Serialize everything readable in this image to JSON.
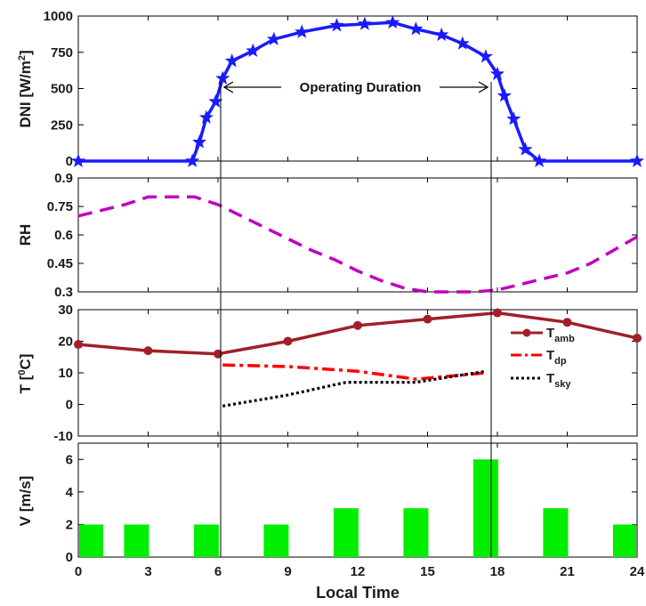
{
  "chart_data": [
    {
      "type": "line",
      "ylabel": "DNI [W/m",
      "ylabel_sup": "2",
      "ylabel_close": "]",
      "ylim": [
        0,
        1000
      ],
      "yticks": [
        0,
        250,
        500,
        750,
        1000
      ],
      "color": "#1a1aff",
      "annotation": "Operating Duration",
      "x": [
        0,
        4.9,
        5.2,
        5.5,
        5.9,
        6.2,
        6.6,
        7.5,
        8.4,
        9.6,
        11.1,
        12.3,
        13.5,
        14.5,
        15.6,
        16.5,
        17.5,
        18.0,
        18.3,
        18.7,
        19.2,
        19.8,
        24
      ],
      "y": [
        0,
        0,
        130,
        300,
        410,
        570,
        690,
        760,
        840,
        890,
        935,
        945,
        955,
        910,
        870,
        810,
        720,
        600,
        450,
        290,
        80,
        0,
        0
      ]
    },
    {
      "type": "line",
      "ylabel": "RH",
      "ylim": [
        0.3,
        0.9
      ],
      "yticks": [
        0.3,
        0.45,
        0.6,
        0.75,
        0.9
      ],
      "color": "#c000c0",
      "x": [
        0,
        1,
        2,
        3,
        4,
        5,
        6,
        7,
        8,
        9,
        10,
        11,
        12,
        13,
        14,
        15,
        16,
        17,
        18,
        19,
        20,
        21,
        22,
        23,
        24
      ],
      "y": [
        0.7,
        0.73,
        0.76,
        0.8,
        0.8,
        0.8,
        0.76,
        0.7,
        0.64,
        0.58,
        0.52,
        0.47,
        0.41,
        0.36,
        0.32,
        0.3,
        0.3,
        0.3,
        0.31,
        0.34,
        0.37,
        0.4,
        0.45,
        0.52,
        0.59
      ]
    },
    {
      "type": "line",
      "ylabel": "T [",
      "ylabel_sup": "0",
      "ylabel_close": "C]",
      "ylim": [
        -10,
        30
      ],
      "yticks": [
        -10,
        0,
        10,
        20,
        30
      ],
      "series": [
        {
          "name": "T",
          "sub": "amb",
          "color": "#a0202a",
          "x": [
            0,
            3,
            6,
            9,
            12,
            15,
            18,
            21,
            24
          ],
          "y": [
            19,
            17,
            16,
            20,
            25,
            27,
            29,
            26,
            21
          ]
        },
        {
          "name": "T",
          "sub": "dp",
          "color": "#ff0000",
          "x": [
            6.2,
            9,
            12,
            14.5,
            17.5
          ],
          "y": [
            12.5,
            12,
            10.5,
            8,
            10
          ]
        },
        {
          "name": "T",
          "sub": "sky",
          "color": "#000000",
          "x": [
            6.2,
            9,
            11.5,
            14.5,
            17.5
          ],
          "y": [
            -0.5,
            3,
            7,
            7,
            10.5
          ]
        }
      ]
    },
    {
      "type": "bar",
      "ylabel": "V [m/s]",
      "ylim": [
        0,
        7
      ],
      "yticks": [
        0,
        2,
        4,
        6
      ],
      "xlabel": "Local Time",
      "xticks": [
        0,
        3,
        6,
        9,
        12,
        15,
        18,
        21,
        24
      ],
      "xlim": [
        0,
        24
      ],
      "color": "#00ee00",
      "x": [
        0,
        2.5,
        5.5,
        8.5,
        11.5,
        14.5,
        17.5,
        20.5,
        23.5
      ],
      "values": [
        2,
        2,
        2,
        2,
        3,
        3,
        6,
        3,
        2
      ]
    }
  ]
}
